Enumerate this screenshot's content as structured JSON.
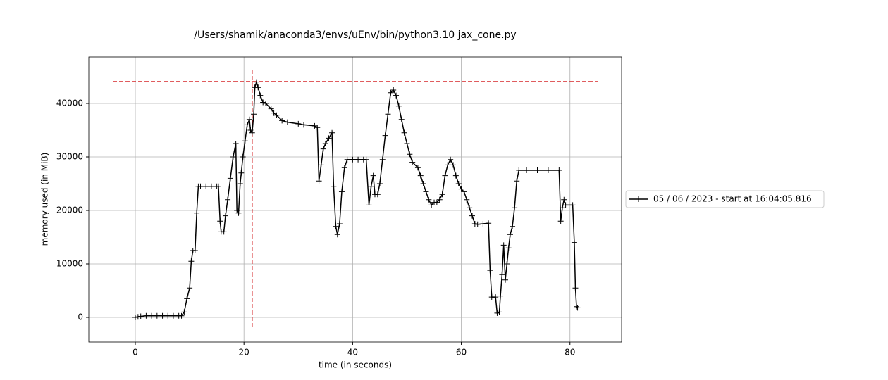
{
  "chart_data": {
    "type": "line",
    "title": "/Users/shamik/anaconda3/envs/uEnv/bin/python3.10 jax_cone.py",
    "x_label": "time (in seconds)",
    "y_label": "memory used (in MiB)",
    "xlim": [
      -8.56,
      89.5
    ],
    "ylim": [
      -4605,
      48684
    ],
    "xticks": [
      0,
      20,
      40,
      60,
      80
    ],
    "yticks": [
      0,
      10000,
      20000,
      30000,
      40000
    ],
    "grid": true,
    "legend_position": "right",
    "peak": {
      "x": 21.5,
      "y": 44079,
      "color": "#d62728"
    },
    "series": [
      {
        "name": "05 / 06 / 2023 - start at 16:04:05.816",
        "color": "#000000",
        "marker": "+",
        "x": [
          0,
          0.5,
          1,
          2,
          3,
          4,
          5,
          6,
          7,
          8,
          8.5,
          9,
          9.5,
          10,
          10.3,
          10.6,
          11,
          11.3,
          11.6,
          12,
          13,
          14,
          15,
          15.3,
          15.6,
          15.8,
          16.3,
          16.6,
          17,
          17.5,
          18,
          18.5,
          18.7,
          19,
          19.3,
          19.5,
          19.8,
          20.2,
          20.6,
          21,
          21.2,
          21.5,
          21.8,
          22,
          22.3,
          22.6,
          23,
          23.5,
          24,
          25,
          25.5,
          26,
          27,
          28,
          30,
          31,
          33,
          33.5,
          33.8,
          34.2,
          34.6,
          35,
          35.6,
          36.2,
          36.5,
          36.9,
          37.2,
          37.6,
          38,
          38.5,
          39,
          40,
          41,
          42,
          42.5,
          43,
          43.4,
          43.8,
          44.1,
          44.6,
          45,
          45.5,
          46,
          46.5,
          47,
          47.5,
          48,
          48.5,
          49,
          49.5,
          50,
          50.5,
          51,
          52,
          52.5,
          53,
          53.5,
          54,
          54.5,
          55,
          55.5,
          56,
          56.5,
          57,
          57.5,
          58,
          58.5,
          59,
          59.5,
          60,
          60.5,
          61,
          61.5,
          62,
          62.5,
          63,
          64,
          65,
          65.3,
          65.6,
          66.3,
          66.6,
          67,
          67.2,
          67.5,
          67.8,
          68.1,
          68.4,
          68.7,
          69,
          69.4,
          69.8,
          70.2,
          70.6,
          72,
          74,
          76,
          78,
          78.3,
          78.6,
          78.9,
          79.2,
          80.5,
          80.8,
          81,
          81.2,
          81.4
        ],
        "values": [
          0,
          100,
          200,
          300,
          300,
          300,
          300,
          300,
          300,
          300,
          300,
          1000,
          3500,
          5500,
          10500,
          12500,
          12500,
          19500,
          24500,
          24500,
          24500,
          24500,
          24500,
          24500,
          18000,
          16000,
          16000,
          19000,
          22000,
          26000,
          30000,
          32500,
          20000,
          19500,
          25000,
          27000,
          30000,
          33000,
          36000,
          37000,
          35000,
          34500,
          38000,
          43000,
          44000,
          43000,
          41500,
          40200,
          40000,
          39000,
          38200,
          37800,
          36800,
          36500,
          36200,
          36000,
          35800,
          35500,
          25500,
          28500,
          31500,
          32500,
          33500,
          34500,
          24500,
          17000,
          15500,
          17500,
          23500,
          28000,
          29500,
          29500,
          29500,
          29500,
          29500,
          21000,
          24500,
          26500,
          23000,
          23000,
          25000,
          29500,
          34000,
          38000,
          42000,
          42500,
          41500,
          39500,
          37000,
          34500,
          32500,
          30500,
          29000,
          28000,
          26500,
          25000,
          23500,
          22000,
          21000,
          21500,
          21500,
          22000,
          23000,
          26500,
          28500,
          29500,
          28500,
          26500,
          25000,
          24000,
          23500,
          22000,
          20500,
          19000,
          17500,
          17400,
          17500,
          17600,
          8800,
          3800,
          3800,
          800,
          1000,
          4000,
          8000,
          13500,
          7000,
          10000,
          13000,
          15500,
          17000,
          20500,
          25500,
          27500,
          27500,
          27500,
          27500,
          27500,
          18000,
          20500,
          22000,
          21000,
          21000,
          14000,
          5500,
          2000,
          1800
        ]
      }
    ]
  }
}
